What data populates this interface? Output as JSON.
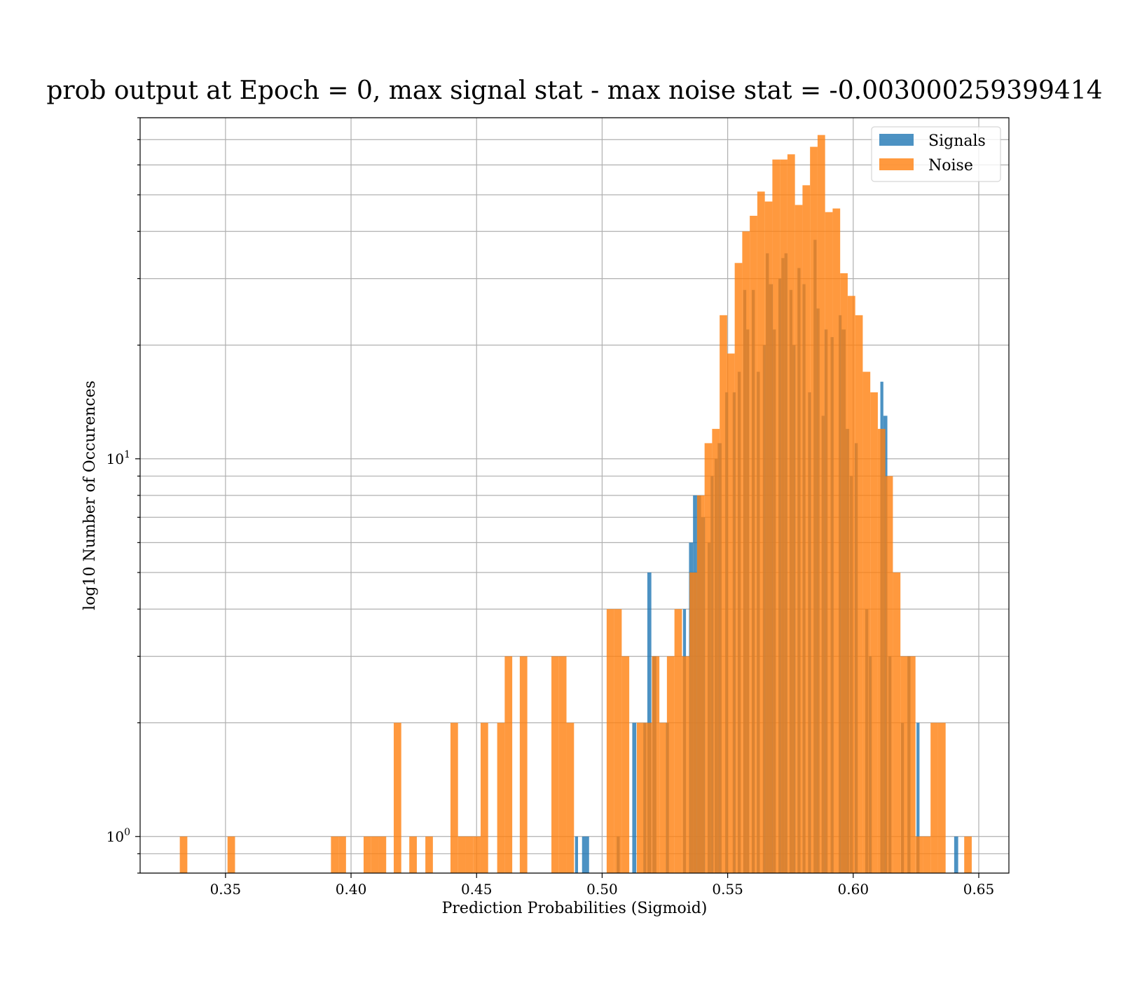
{
  "chart_data": {
    "type": "bar",
    "title": "prob output at Epoch = 0, max signal stat - max noise stat = -0.003000259399414",
    "xlabel": "Prediction Probabilities (Sigmoid)",
    "ylabel": "log10 Number of Occurences",
    "xscale": "linear",
    "yscale": "log",
    "xlim": [
      0.316,
      0.662
    ],
    "ylim": [
      0.8,
      80
    ],
    "xticks": [
      "0.35",
      "0.40",
      "0.45",
      "0.50",
      "0.55",
      "0.60",
      "0.65"
    ],
    "yticks": [
      {
        "base": "10",
        "exp": "0"
      },
      {
        "base": "10",
        "exp": "1"
      }
    ],
    "grid": true,
    "legend_position": "top-right",
    "colors": {
      "signals": "#1f77b4",
      "noise": "#ff7f0e"
    },
    "series": [
      {
        "name": "Signals",
        "color": "#1f77b4",
        "bins": [
          [
            0.4892,
            0.4904,
            1
          ],
          [
            0.492,
            0.4948,
            1
          ],
          [
            0.5058,
            0.507,
            1
          ],
          [
            0.512,
            0.5136,
            2
          ],
          [
            0.5164,
            0.5176,
            2
          ],
          [
            0.518,
            0.5196,
            5
          ],
          [
            0.52,
            0.5216,
            3
          ],
          [
            0.5254,
            0.5266,
            2
          ],
          [
            0.5322,
            0.5334,
            4
          ],
          [
            0.5346,
            0.5362,
            6
          ],
          [
            0.5362,
            0.5378,
            8
          ],
          [
            0.5378,
            0.5394,
            8
          ],
          [
            0.5394,
            0.541,
            7
          ],
          [
            0.542,
            0.5432,
            6
          ],
          [
            0.5432,
            0.5444,
            9
          ],
          [
            0.5448,
            0.546,
            10
          ],
          [
            0.546,
            0.5476,
            11
          ],
          [
            0.549,
            0.5502,
            15
          ],
          [
            0.552,
            0.5532,
            15
          ],
          [
            0.554,
            0.5552,
            17
          ],
          [
            0.5562,
            0.5574,
            28
          ],
          [
            0.5574,
            0.5586,
            22
          ],
          [
            0.5596,
            0.5608,
            28
          ],
          [
            0.5616,
            0.5628,
            17
          ],
          [
            0.564,
            0.5652,
            20
          ],
          [
            0.5652,
            0.5664,
            35
          ],
          [
            0.5664,
            0.568,
            29
          ],
          [
            0.568,
            0.5692,
            22
          ],
          [
            0.5702,
            0.5714,
            30
          ],
          [
            0.5714,
            0.5726,
            34
          ],
          [
            0.5726,
            0.5738,
            35
          ],
          [
            0.5746,
            0.5758,
            28
          ],
          [
            0.5758,
            0.577,
            20
          ],
          [
            0.5778,
            0.579,
            32
          ],
          [
            0.5798,
            0.581,
            29
          ],
          [
            0.582,
            0.5832,
            15
          ],
          [
            0.5842,
            0.5854,
            38
          ],
          [
            0.5854,
            0.5866,
            25
          ],
          [
            0.5874,
            0.5886,
            13
          ],
          [
            0.5886,
            0.5898,
            22
          ],
          [
            0.591,
            0.5922,
            21
          ],
          [
            0.5942,
            0.5954,
            24
          ],
          [
            0.5954,
            0.597,
            22
          ],
          [
            0.597,
            0.5984,
            12
          ],
          [
            0.5986,
            0.5998,
            9
          ],
          [
            0.6006,
            0.6018,
            11
          ],
          [
            0.6048,
            0.606,
            4
          ],
          [
            0.6062,
            0.6074,
            3
          ],
          [
            0.6108,
            0.612,
            16
          ],
          [
            0.612,
            0.6136,
            13
          ],
          [
            0.614,
            0.6152,
            3
          ],
          [
            0.619,
            0.6202,
            2
          ],
          [
            0.6216,
            0.6228,
            3
          ],
          [
            0.6252,
            0.6264,
            2
          ],
          [
            0.6402,
            0.6418,
            1
          ]
        ]
      },
      {
        "name": "Noise",
        "color": "#ff7f0e",
        "bins": [
          [
            0.3318,
            0.3348,
            1
          ],
          [
            0.3508,
            0.3538,
            1
          ],
          [
            0.392,
            0.395,
            1
          ],
          [
            0.395,
            0.398,
            1
          ],
          [
            0.405,
            0.408,
            1
          ],
          [
            0.408,
            0.411,
            1
          ],
          [
            0.411,
            0.414,
            1
          ],
          [
            0.417,
            0.42,
            2
          ],
          [
            0.4232,
            0.4262,
            1
          ],
          [
            0.4296,
            0.4326,
            1
          ],
          [
            0.4396,
            0.4426,
            2
          ],
          [
            0.4426,
            0.4456,
            1
          ],
          [
            0.4456,
            0.4486,
            1
          ],
          [
            0.4486,
            0.4516,
            1
          ],
          [
            0.4516,
            0.4546,
            2
          ],
          [
            0.4582,
            0.4612,
            2
          ],
          [
            0.4612,
            0.4642,
            3
          ],
          [
            0.4672,
            0.4702,
            3
          ],
          [
            0.4798,
            0.4828,
            3
          ],
          [
            0.4828,
            0.4858,
            3
          ],
          [
            0.4858,
            0.4888,
            2
          ],
          [
            0.5018,
            0.5048,
            4
          ],
          [
            0.5048,
            0.5078,
            4
          ],
          [
            0.5078,
            0.5108,
            3
          ],
          [
            0.5138,
            0.5168,
            2
          ],
          [
            0.5168,
            0.5198,
            2
          ],
          [
            0.5198,
            0.5228,
            3
          ],
          [
            0.5228,
            0.5258,
            2
          ],
          [
            0.5258,
            0.5288,
            3
          ],
          [
            0.5288,
            0.5318,
            4
          ],
          [
            0.5318,
            0.5348,
            3
          ],
          [
            0.5348,
            0.5378,
            5
          ],
          [
            0.5378,
            0.5408,
            8
          ],
          [
            0.5408,
            0.5438,
            11
          ],
          [
            0.5438,
            0.5468,
            12
          ],
          [
            0.5468,
            0.5498,
            24
          ],
          [
            0.5498,
            0.5528,
            19
          ],
          [
            0.5528,
            0.5558,
            33
          ],
          [
            0.5558,
            0.5588,
            40
          ],
          [
            0.5588,
            0.5618,
            44
          ],
          [
            0.5618,
            0.5648,
            51
          ],
          [
            0.5648,
            0.5678,
            48
          ],
          [
            0.5678,
            0.5708,
            62
          ],
          [
            0.5708,
            0.5738,
            62
          ],
          [
            0.5738,
            0.5768,
            64
          ],
          [
            0.5768,
            0.5798,
            47
          ],
          [
            0.5798,
            0.5828,
            53
          ],
          [
            0.5828,
            0.5858,
            67
          ],
          [
            0.5858,
            0.5888,
            72
          ],
          [
            0.5888,
            0.5918,
            45
          ],
          [
            0.5918,
            0.5948,
            46
          ],
          [
            0.5948,
            0.5978,
            31
          ],
          [
            0.5978,
            0.6008,
            27
          ],
          [
            0.6008,
            0.6038,
            24
          ],
          [
            0.6038,
            0.6068,
            17
          ],
          [
            0.6068,
            0.6098,
            15
          ],
          [
            0.6098,
            0.6128,
            12
          ],
          [
            0.6128,
            0.6158,
            9
          ],
          [
            0.6158,
            0.6188,
            5
          ],
          [
            0.6188,
            0.6218,
            3
          ],
          [
            0.6218,
            0.6248,
            3
          ],
          [
            0.6248,
            0.6278,
            1
          ],
          [
            0.6278,
            0.6308,
            1
          ],
          [
            0.6308,
            0.6338,
            2
          ],
          [
            0.6338,
            0.6368,
            2
          ],
          [
            0.6442,
            0.6472,
            1
          ]
        ]
      }
    ]
  }
}
